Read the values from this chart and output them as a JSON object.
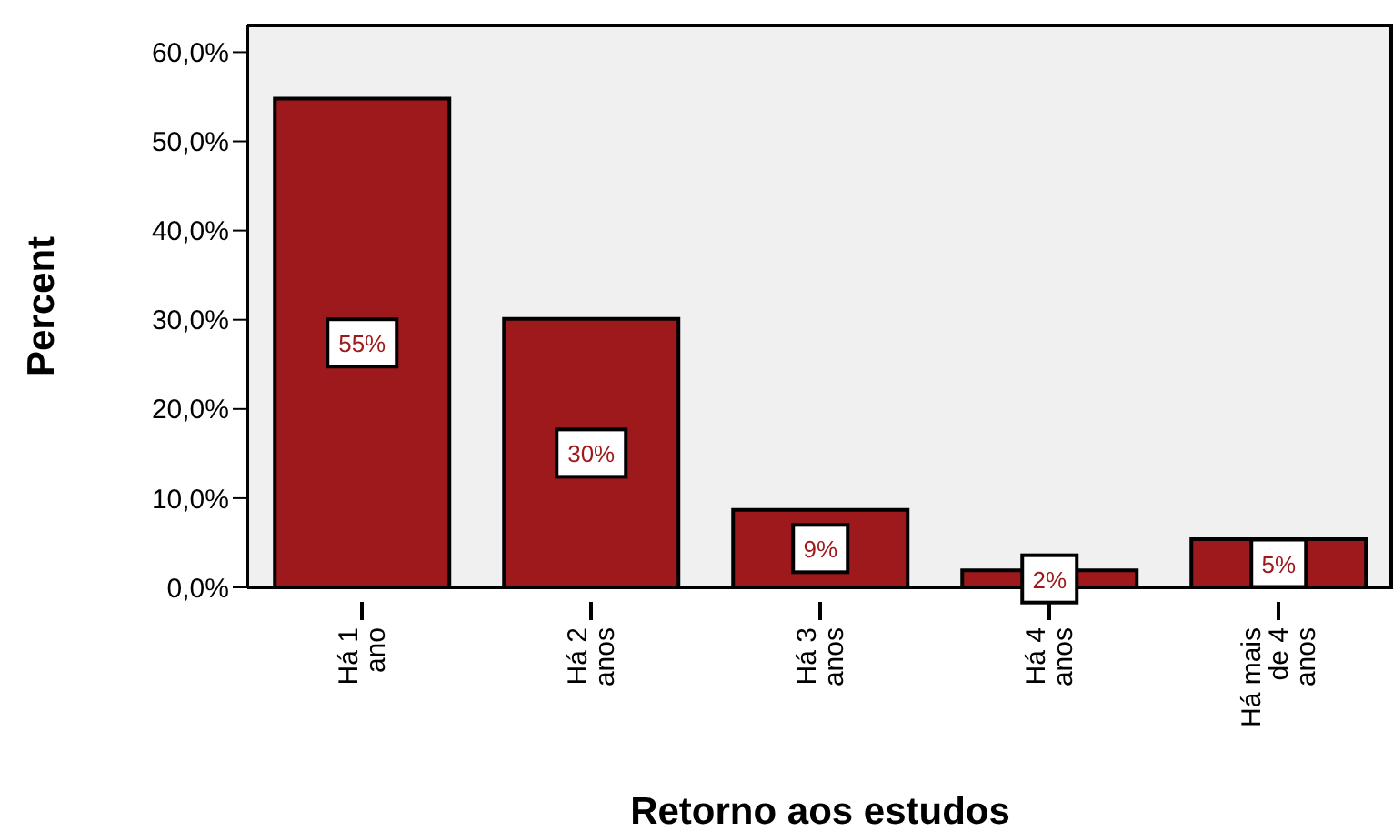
{
  "chart_data": {
    "type": "bar",
    "xlabel": "Retorno aos estudos",
    "ylabel": "Percent",
    "categories": [
      "Há 1 ano",
      "Há 2 anos",
      "Há 3 anos",
      "Há 4 anos",
      "Há mais de 4 anos"
    ],
    "values": [
      54.8,
      30.1,
      8.7,
      1.9,
      5.4
    ],
    "value_labels": [
      "55%",
      "30%",
      "9%",
      "2%",
      "5%"
    ],
    "color": "#9e191c",
    "ylim": [
      0,
      63
    ],
    "yticks": [
      {
        "value": 0,
        "label": "0,0%"
      },
      {
        "value": 10,
        "label": "10,0%"
      },
      {
        "value": 20,
        "label": "20,0%"
      },
      {
        "value": 30,
        "label": "30,0%"
      },
      {
        "value": 40,
        "label": "40,0%"
      },
      {
        "value": 50,
        "label": "50,0%"
      },
      {
        "value": 60,
        "label": "60,0%"
      }
    ]
  }
}
